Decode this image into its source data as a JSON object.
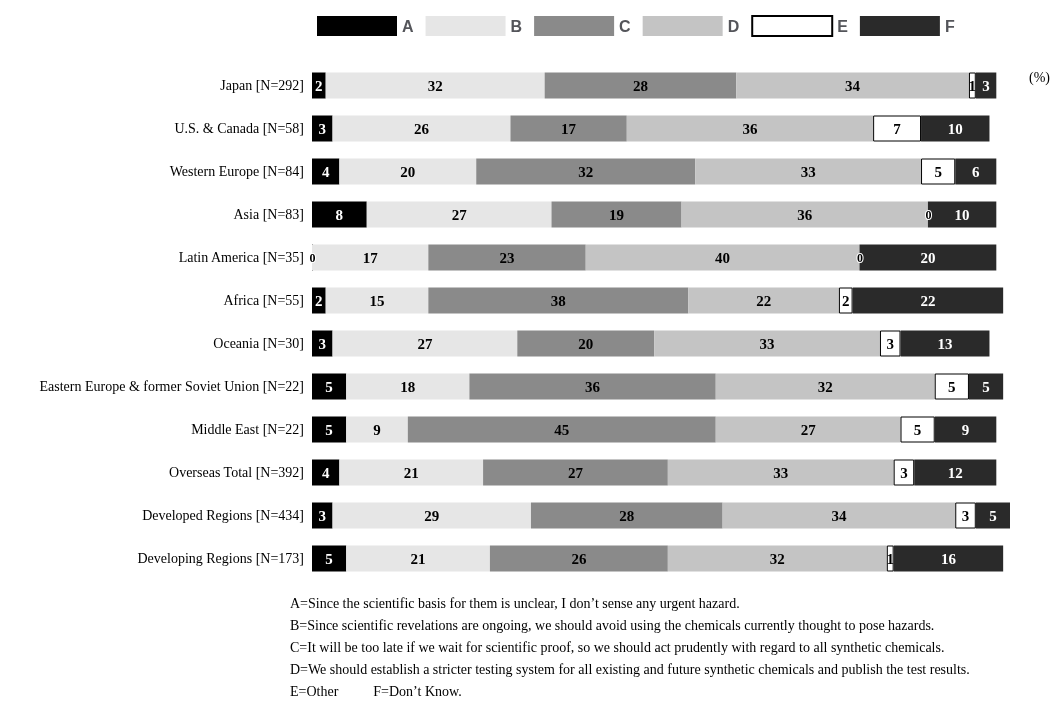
{
  "chart_data": {
    "type": "bar",
    "orientation": "horizontal",
    "stacked": true,
    "data_labels": true,
    "legend": "top",
    "categories": [
      "Japan [N=292]",
      "U.S. & Canada [N=58]",
      "Western Europe [N=84]",
      "Asia [N=83]",
      "Latin America [N=35]",
      "Africa [N=55]",
      "Oceania [N=30]",
      "Eastern Europe & former Soviet Union [N=22]",
      "Middle East [N=22]",
      "Overseas Total [N=392]",
      "Developed Regions [N=434]",
      "Developing Regions [N=173]"
    ],
    "tick_labels": "y",
    "series": [
      {
        "name": "A",
        "color": "#000000",
        "values": [
          2,
          3,
          4,
          8,
          0,
          2,
          3,
          5,
          5,
          4,
          3,
          5
        ]
      },
      {
        "name": "B",
        "color": "#e6e6e6",
        "values": [
          32,
          26,
          20,
          27,
          17,
          15,
          27,
          18,
          9,
          21,
          29,
          21
        ]
      },
      {
        "name": "C",
        "color": "#8a8a8a",
        "values": [
          28,
          17,
          32,
          19,
          23,
          38,
          20,
          36,
          45,
          27,
          28,
          26
        ]
      },
      {
        "name": "D",
        "color": "#c4c4c4",
        "values": [
          34,
          36,
          33,
          36,
          40,
          22,
          33,
          32,
          27,
          33,
          34,
          32
        ]
      },
      {
        "name": "E",
        "color": "#ffffff",
        "values": [
          1,
          7,
          5,
          0,
          0,
          2,
          3,
          5,
          5,
          3,
          3,
          1
        ]
      },
      {
        "name": "F",
        "color": "#2a2a2a",
        "values": [
          3,
          10,
          6,
          10,
          20,
          22,
          13,
          5,
          9,
          12,
          5,
          16
        ]
      }
    ],
    "annotations": [
      "(%)",
      "A=Since the scientific basis for them is unclear, I don’t sense any urgent hazard.",
      "B=Since scientific revelations are ongoing, we should avoid using the chemicals currently thought to pose hazards.",
      "C=It will be too late if we wait for scientific proof, so we should act prudently with regard to all synthetic chemicals.",
      "D=We should establish a stricter testing system for all existing and future synthetic chemicals and publish the test results.",
      "E=Other          F=Don’t Know."
    ]
  }
}
